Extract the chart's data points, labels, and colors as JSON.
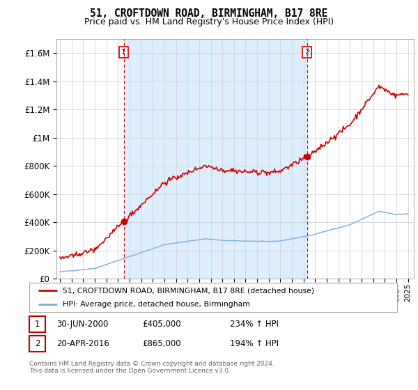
{
  "title": "51, CROFTDOWN ROAD, BIRMINGHAM, B17 8RE",
  "subtitle": "Price paid vs. HM Land Registry's House Price Index (HPI)",
  "ylim": [
    0,
    1700000
  ],
  "yticks": [
    0,
    200000,
    400000,
    600000,
    800000,
    1000000,
    1200000,
    1400000,
    1600000
  ],
  "ytick_labels": [
    "£0",
    "£200K",
    "£400K",
    "£600K",
    "£800K",
    "£1M",
    "£1.2M",
    "£1.4M",
    "£1.6M"
  ],
  "xlim_start": 1994.7,
  "xlim_end": 2025.5,
  "sale1_date": 2000.5,
  "sale1_price": 405000,
  "sale2_date": 2016.3,
  "sale2_price": 865000,
  "line_color_property": "#cc0000",
  "line_color_hpi": "#7aadda",
  "shade_color": "#ddeeff",
  "annotation1_label": "1",
  "annotation2_label": "2",
  "legend_label1": "51, CROFTDOWN ROAD, BIRMINGHAM, B17 8RE (detached house)",
  "legend_label2": "HPI: Average price, detached house, Birmingham",
  "table_row1": [
    "1",
    "30-JUN-2000",
    "£405,000",
    "234% ↑ HPI"
  ],
  "table_row2": [
    "2",
    "20-APR-2016",
    "£865,000",
    "194% ↑ HPI"
  ],
  "footer": "Contains HM Land Registry data © Crown copyright and database right 2024.\nThis data is licensed under the Open Government Licence v3.0.",
  "background_color": "#ffffff",
  "grid_color": "#cccccc"
}
